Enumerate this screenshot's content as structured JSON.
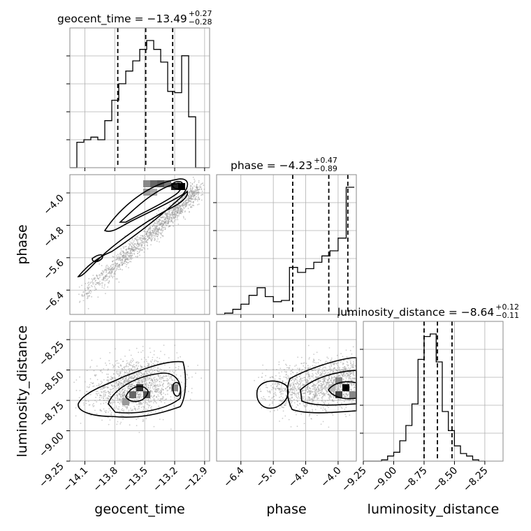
{
  "chart_data": {
    "type": "corner",
    "parameters": [
      "geocent_time",
      "phase",
      "luminosity_distance"
    ],
    "axis_labels": [
      "geocent_time",
      "phase",
      "luminosity_distance"
    ],
    "ranges": {
      "geocent_time": [
        -14.25,
        -12.85
      ],
      "phase": [
        -7.0,
        -3.55
      ],
      "luminosity_distance": [
        -9.25,
        -8.1
      ]
    },
    "ticks": {
      "geocent_time": [
        "−14.1",
        "−13.8",
        "−13.5",
        "−13.2",
        "−12.9"
      ],
      "geocent_time_values": [
        -14.1,
        -13.8,
        -13.5,
        -13.2,
        -12.9
      ],
      "phase": [
        "−6.4",
        "−5.6",
        "−4.8",
        "−4.0"
      ],
      "phase_values": [
        -6.4,
        -5.6,
        -4.8,
        -4.0
      ],
      "luminosity_distance": [
        "−9.25",
        "−9.00",
        "−8.75",
        "−8.50",
        "−8.25"
      ],
      "luminosity_distance_values": [
        -9.25,
        -9.0,
        -8.75,
        -8.5,
        -8.25
      ]
    },
    "titles": [
      {
        "param": "geocent_time",
        "main": "geocent_time = −13.49",
        "plus": "+0.27",
        "minus": "−0.28"
      },
      {
        "param": "phase",
        "main": "phase = −4.23",
        "plus": "+0.47",
        "minus": "−0.89"
      },
      {
        "param": "luminosity_distance",
        "main": "luminosity_distance = −8.64",
        "plus": "+0.12",
        "minus": "−0.11"
      }
    ],
    "quantiles": {
      "geocent_time": [
        -13.77,
        -13.49,
        -13.22
      ],
      "phase": [
        -5.12,
        -4.23,
        -3.76
      ],
      "luminosity_distance": [
        -8.75,
        -8.64,
        -8.52
      ]
    },
    "histograms": {
      "geocent_time": {
        "edges": [
          -14.25,
          -14.18,
          -14.11,
          -14.04,
          -13.97,
          -13.9,
          -13.83,
          -13.76,
          -13.69,
          -13.62,
          -13.55,
          -13.48,
          -13.41,
          -13.34,
          -13.27,
          -13.2,
          -13.13,
          -13.06,
          -12.99,
          -12.92,
          -12.85
        ],
        "counts": [
          0,
          0.2,
          0.22,
          0.24,
          0.22,
          0.37,
          0.53,
          0.66,
          0.76,
          0.84,
          0.93,
          1.0,
          0.93,
          0.83,
          0.6,
          0.59,
          0.88,
          0.4,
          0.0,
          0.0
        ]
      },
      "phase": {
        "edges": [
          -7.0,
          -6.8,
          -6.6,
          -6.4,
          -6.2,
          -6.0,
          -5.8,
          -5.6,
          -5.4,
          -5.2,
          -5.0,
          -4.8,
          -4.6,
          -4.4,
          -4.2,
          -4.0,
          -3.8,
          -3.6
        ],
        "counts": [
          0.0,
          0.01,
          0.04,
          0.08,
          0.15,
          0.21,
          0.14,
          0.1,
          0.11,
          0.37,
          0.33,
          0.36,
          0.41,
          0.46,
          0.5,
          0.6,
          1.0
        ]
      },
      "luminosity_distance": {
        "edges": [
          -9.25,
          -9.1,
          -9.05,
          -9.0,
          -8.95,
          -8.9,
          -8.85,
          -8.8,
          -8.75,
          -8.7,
          -8.65,
          -8.6,
          -8.55,
          -8.5,
          -8.45,
          -8.4,
          -8.35,
          -8.3,
          -8.25
        ],
        "counts": [
          0.0,
          0.01,
          0.04,
          0.07,
          0.16,
          0.28,
          0.45,
          0.8,
          0.98,
          1.0,
          0.78,
          0.39,
          0.24,
          0.12,
          0.06,
          0.04,
          0.01,
          0.0
        ]
      }
    },
    "grid": true
  }
}
